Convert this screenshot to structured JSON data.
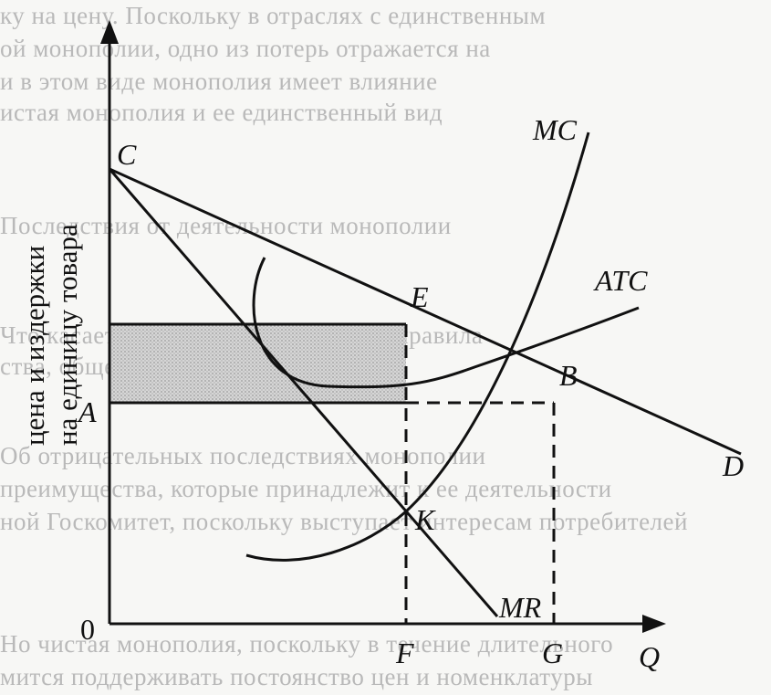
{
  "background_text": [
    "ку на цену. Поскольку в отраслях с единственным",
    "ой монополии, одно из потерь отражается на",
    "и в этом виде монополия имеет влияние",
    "истая монополия и ее единственный вид",
    "",
    "Последствия от деятельности монополии",
    "Что касается монополии, она имеет правила",
    "ства, общего на",
    "",
    "Об отрицательных последствиях монополии",
    "преимущества, которые принадлежит к ее деятельности",
    "ной Госкомитет, поскольку выступает интересам потребителей",
    "",
    "Но чистая монополия, поскольку в течение длительного",
    "мится поддерживать постоянство цен и номенклатуры"
  ],
  "labels": {
    "y_axis_line1": "цена и издержки",
    "y_axis_line2": "на единицу товара",
    "x_axis": "Q",
    "origin": "0",
    "C": "C",
    "A": "A",
    "E": "E",
    "B": "B",
    "K": "K",
    "F": "F",
    "G": "G",
    "D": "D",
    "MR": "MR",
    "MC": "MC",
    "ATC": "ATC"
  },
  "colors": {
    "line": "#111111",
    "shade": "#c8c8c8"
  }
}
